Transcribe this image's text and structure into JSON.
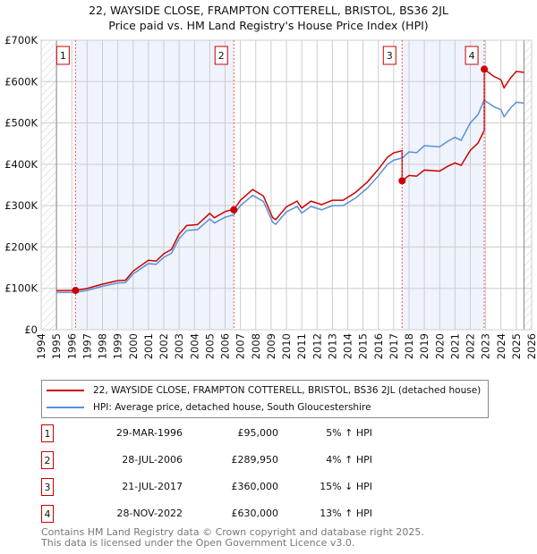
{
  "title_line1": "22, WAYSIDE CLOSE, FRAMPTON COTTERELL, BRISTOL, BS36 2JL",
  "title_line2": "Price paid vs. HM Land Registry's House Price Index (HPI)",
  "chart_data": {
    "type": "line",
    "title": "22, WAYSIDE CLOSE, FRAMPTON COTTERELL, BRISTOL, BS36 2JL — Price paid vs. HM Land Registry's House Price Index (HPI)",
    "xlim": [
      1994,
      2026
    ],
    "ylim": [
      0,
      700000
    ],
    "x_ticks": [
      "1994",
      "1995",
      "1996",
      "1997",
      "1998",
      "1999",
      "2000",
      "2001",
      "2002",
      "2003",
      "2004",
      "2005",
      "2006",
      "2007",
      "2008",
      "2009",
      "2010",
      "2011",
      "2012",
      "2013",
      "2014",
      "2015",
      "2016",
      "2017",
      "2018",
      "2019",
      "2020",
      "2021",
      "2022",
      "2023",
      "2024",
      "2025",
      "2026"
    ],
    "y_ticks": [
      {
        "v": 0,
        "label": "£0"
      },
      {
        "v": 100000,
        "label": "£100K"
      },
      {
        "v": 200000,
        "label": "£200K"
      },
      {
        "v": 300000,
        "label": "£300K"
      },
      {
        "v": 400000,
        "label": "£400K"
      },
      {
        "v": 500000,
        "label": "£500K"
      },
      {
        "v": 600000,
        "label": "£600K"
      },
      {
        "v": 700000,
        "label": "£700K"
      }
    ],
    "grid": true,
    "data_range": [
      1995,
      2025.5
    ],
    "colors": {
      "price": "#cc0000",
      "hpi": "#5b8fd6",
      "shade": "#eef3fc"
    },
    "hpi": [
      [
        1995,
        90
      ],
      [
        1996.24,
        90.5
      ],
      [
        1997,
        95
      ],
      [
        1998,
        105
      ],
      [
        1999,
        113
      ],
      [
        1999.5,
        114
      ],
      [
        2000,
        135
      ],
      [
        2001,
        160
      ],
      [
        2001.5,
        158
      ],
      [
        2002,
        175
      ],
      [
        2002.5,
        185
      ],
      [
        2003,
        220
      ],
      [
        2003.5,
        240
      ],
      [
        2004.2,
        242
      ],
      [
        2005,
        268
      ],
      [
        2005.3,
        258
      ],
      [
        2006,
        272
      ],
      [
        2006.57,
        278
      ],
      [
        2007,
        300
      ],
      [
        2007.8,
        325
      ],
      [
        2008.5,
        310
      ],
      [
        2009.1,
        260
      ],
      [
        2009.3,
        255
      ],
      [
        2010,
        285
      ],
      [
        2010.7,
        298
      ],
      [
        2011,
        282
      ],
      [
        2011.6,
        298
      ],
      [
        2012.3,
        290
      ],
      [
        2013,
        300
      ],
      [
        2013.7,
        300
      ],
      [
        2014.5,
        318
      ],
      [
        2015.3,
        343
      ],
      [
        2016,
        372
      ],
      [
        2016.6,
        400
      ],
      [
        2017,
        410
      ],
      [
        2017.55,
        415
      ],
      [
        2018,
        430
      ],
      [
        2018.5,
        428
      ],
      [
        2019,
        445
      ],
      [
        2020,
        442
      ],
      [
        2020.5,
        455
      ],
      [
        2021,
        465
      ],
      [
        2021.4,
        458
      ],
      [
        2022,
        500
      ],
      [
        2022.5,
        520
      ],
      [
        2022.9,
        555
      ],
      [
        2023.5,
        540
      ],
      [
        2024,
        532
      ],
      [
        2024.2,
        515
      ],
      [
        2024.6,
        535
      ],
      [
        2025,
        550
      ],
      [
        2025.5,
        548
      ]
    ],
    "hpi_unit": 1000,
    "sales": [
      {
        "n": "1",
        "x": 1996.24,
        "date": "29-MAR-1996",
        "price": 95000,
        "price_label": "£95,000",
        "rel": "5% ↑ HPI"
      },
      {
        "n": "2",
        "x": 2006.57,
        "date": "28-JUL-2006",
        "price": 289950,
        "price_label": "£289,950",
        "rel": "4% ↑ HPI"
      },
      {
        "n": "3",
        "x": 2017.55,
        "date": "21-JUL-2017",
        "price": 360000,
        "price_label": "£360,000",
        "rel": "15% ↓ HPI"
      },
      {
        "n": "4",
        "x": 2022.91,
        "date": "28-NOV-2022",
        "price": 630000,
        "price_label": "£630,000",
        "rel": "13% ↑ HPI"
      }
    ],
    "legend": {
      "price": "22, WAYSIDE CLOSE, FRAMPTON COTTERELL, BRISTOL, BS36 2JL (detached house)",
      "hpi": "HPI: Average price, detached house, South Gloucestershire"
    }
  },
  "footer": {
    "line1": "Contains HM Land Registry data © Crown copyright and database right 2025.",
    "line2": "This data is licensed under the Open Government Licence v3.0."
  }
}
